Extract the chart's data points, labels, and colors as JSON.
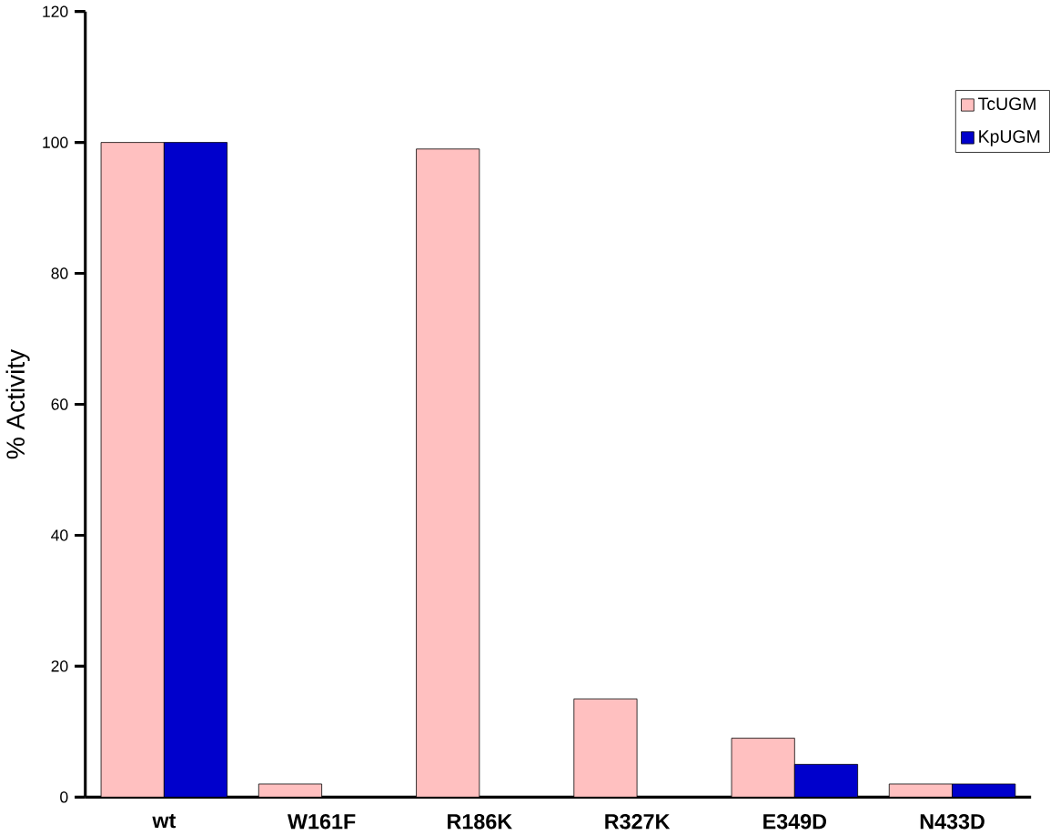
{
  "chart_data": {
    "type": "bar",
    "ylabel": "% Activity",
    "categories": [
      "wt",
      "W161F",
      "R186K",
      "R327K",
      "E349D",
      "N433D"
    ],
    "series": [
      {
        "name": "TcUGM",
        "color": "#ffc0c0",
        "values": [
          100,
          2,
          99,
          15,
          9,
          2
        ]
      },
      {
        "name": "KpUGM",
        "color": "#0000cc",
        "values": [
          100,
          null,
          null,
          null,
          5,
          2
        ]
      }
    ],
    "ylim": [
      0,
      120
    ],
    "yticks": [
      0,
      20,
      40,
      60,
      80,
      100,
      120
    ],
    "legend": "top right",
    "grid": false
  }
}
